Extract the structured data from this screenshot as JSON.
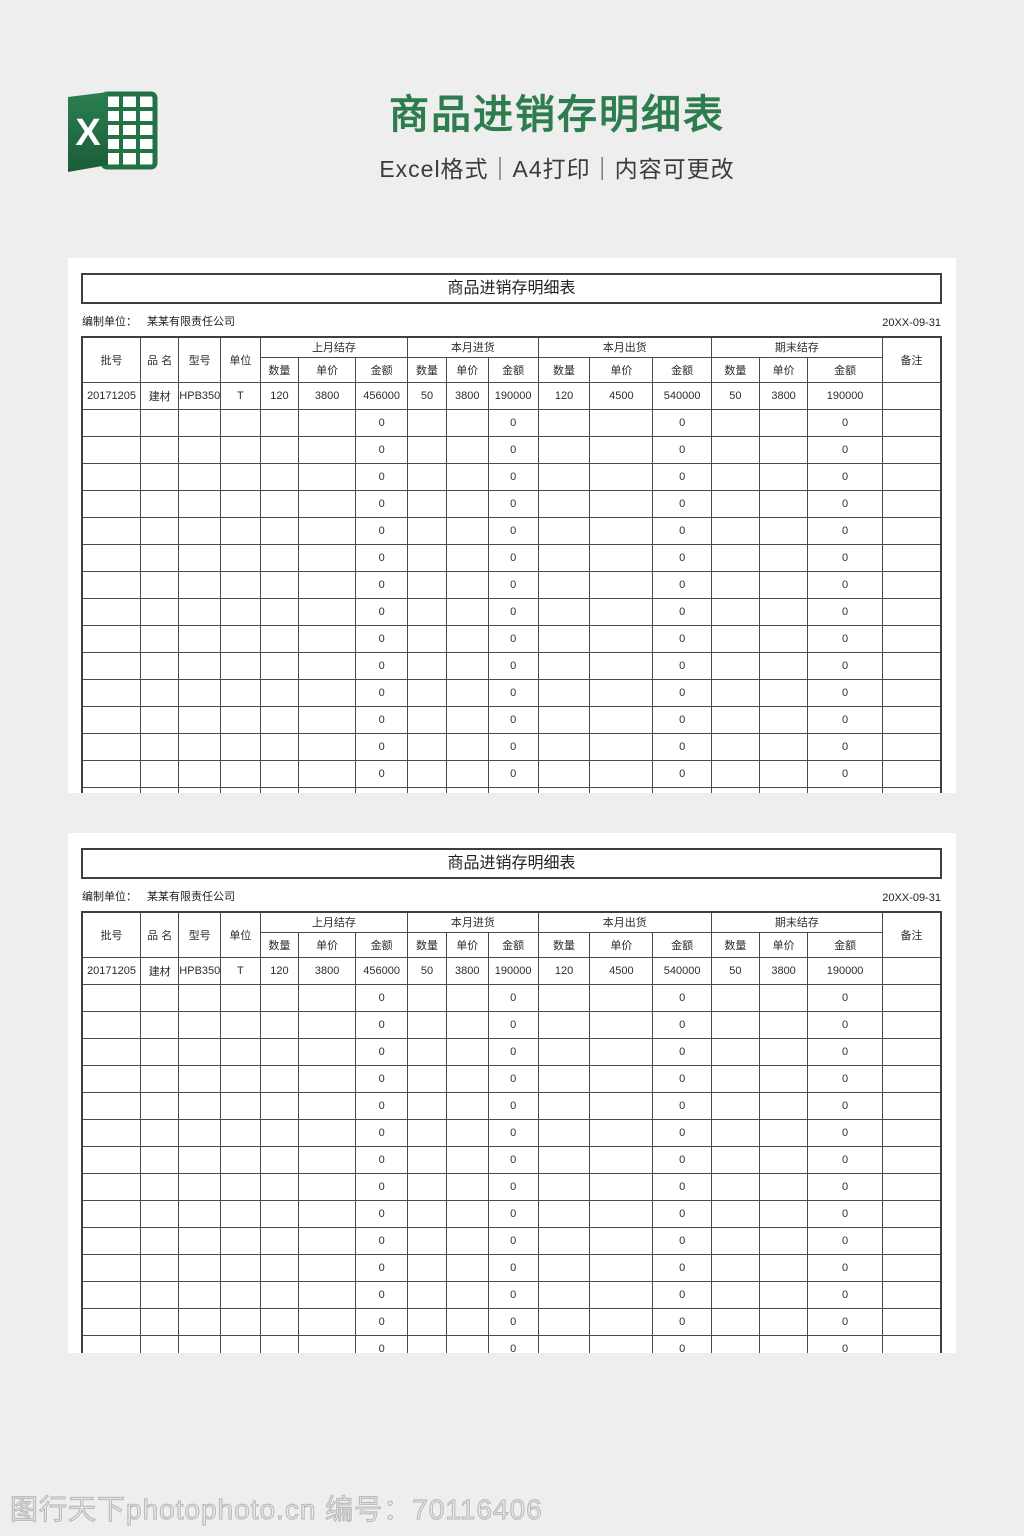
{
  "header": {
    "title": "商品进销存明细表",
    "subtitle": "Excel格式｜A4打印｜内容可更改",
    "excel_icon_letter": "X"
  },
  "sheet": {
    "title": "商品进销存明细表",
    "prepared_by_label": "编制单位：",
    "prepared_by_value": "某某有限责任公司",
    "date": "20XX-09-31",
    "col_batch": "批号",
    "col_name": "品 名",
    "col_model": "型号",
    "col_unit": "单位",
    "col_remark": "备注",
    "groups": [
      "上月结存",
      "本月进货",
      "本月出货",
      "期末结存"
    ],
    "sub_headers": [
      "数量",
      "单价",
      "金额"
    ],
    "data_row": [
      "20171205",
      "建材",
      "HPB350",
      "T",
      "120",
      "3800",
      "456000",
      "50",
      "3800",
      "190000",
      "120",
      "4500",
      "540000",
      "50",
      "3800",
      "190000",
      ""
    ],
    "zero_value": "0",
    "zero_columns": [
      6,
      9,
      12,
      15
    ],
    "empty_rows_per_panel": 16
  },
  "colors": {
    "accent_green": "#2e7d4f",
    "excel_green": "#217346",
    "page_bg": "#eeeeee",
    "table_border": "#3f3f3f"
  },
  "footer": {
    "watermark": "图行天下photophoto.cn 编号：70116406"
  }
}
